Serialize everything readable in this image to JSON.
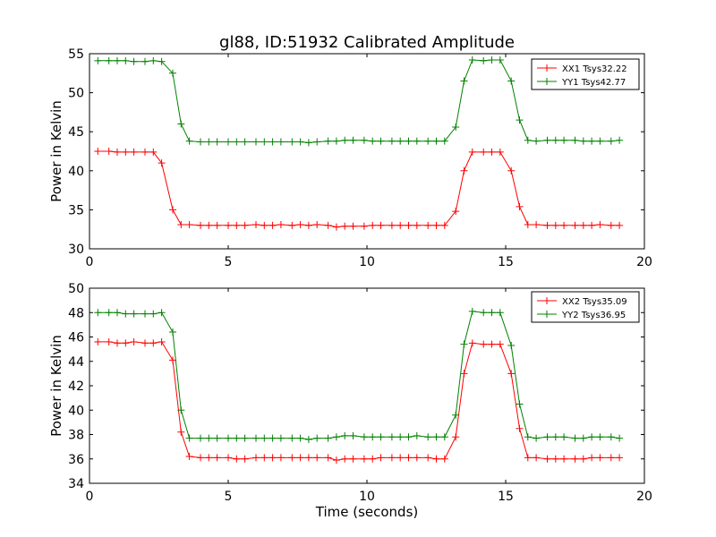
{
  "chart_data": [
    {
      "type": "line",
      "title": "gl88, ID:51932 Calibrated Amplitude",
      "xlabel": "",
      "ylabel": "Power in Kelvin",
      "xlim": [
        0,
        20
      ],
      "ylim": [
        30,
        55
      ],
      "xticks": [
        0,
        5,
        10,
        15,
        20
      ],
      "yticks": [
        30,
        35,
        40,
        45,
        50,
        55
      ],
      "grid": false,
      "legend_position": "top-right",
      "x": [
        0.3,
        0.7,
        1.0,
        1.3,
        1.6,
        2.0,
        2.3,
        2.6,
        3.0,
        3.3,
        3.6,
        4.0,
        4.3,
        4.6,
        5.0,
        5.3,
        5.6,
        6.0,
        6.3,
        6.6,
        6.9,
        7.3,
        7.6,
        7.9,
        8.2,
        8.6,
        8.9,
        9.2,
        9.5,
        9.9,
        10.2,
        10.5,
        10.9,
        11.2,
        11.5,
        11.8,
        12.2,
        12.5,
        12.8,
        13.2,
        13.5,
        13.8,
        14.2,
        14.5,
        14.8,
        15.2,
        15.5,
        15.8,
        16.1,
        16.5,
        16.8,
        17.1,
        17.5,
        17.8,
        18.1,
        18.4,
        18.8,
        19.1
      ],
      "series": [
        {
          "name": "XX1 Tsys32.22",
          "color": "#ff0000",
          "values": [
            42.5,
            42.5,
            42.4,
            42.4,
            42.4,
            42.4,
            42.4,
            41.0,
            35.0,
            33.1,
            33.1,
            33.0,
            33.0,
            33.0,
            33.0,
            33.0,
            33.0,
            33.1,
            33.0,
            33.0,
            33.1,
            33.0,
            33.1,
            33.0,
            33.1,
            33.0,
            32.8,
            32.9,
            32.9,
            32.9,
            33.0,
            33.0,
            33.0,
            33.0,
            33.0,
            33.0,
            33.0,
            33.0,
            33.0,
            34.8,
            40.0,
            42.4,
            42.4,
            42.4,
            42.4,
            40.0,
            35.4,
            33.1,
            33.1,
            33.0,
            33.0,
            33.0,
            33.0,
            33.0,
            33.0,
            33.1,
            33.0,
            33.0
          ]
        },
        {
          "name": "YY1 Tsys42.77",
          "color": "#008000",
          "values": [
            54.1,
            54.1,
            54.1,
            54.1,
            54.0,
            54.0,
            54.1,
            54.0,
            52.5,
            46.0,
            43.8,
            43.7,
            43.7,
            43.7,
            43.7,
            43.7,
            43.7,
            43.7,
            43.7,
            43.7,
            43.7,
            43.7,
            43.7,
            43.6,
            43.7,
            43.8,
            43.8,
            43.9,
            43.9,
            43.9,
            43.8,
            43.8,
            43.8,
            43.8,
            43.8,
            43.8,
            43.8,
            43.8,
            43.8,
            45.6,
            51.5,
            54.2,
            54.1,
            54.2,
            54.2,
            51.5,
            46.5,
            43.9,
            43.8,
            43.9,
            43.9,
            43.9,
            43.9,
            43.8,
            43.8,
            43.8,
            43.8,
            43.9
          ]
        }
      ]
    },
    {
      "type": "line",
      "title": "",
      "xlabel": "Time (seconds)",
      "ylabel": "Power in Kelvin",
      "xlim": [
        0,
        20
      ],
      "ylim": [
        34,
        50
      ],
      "xticks": [
        0,
        5,
        10,
        15,
        20
      ],
      "yticks": [
        34,
        36,
        38,
        40,
        42,
        44,
        46,
        48,
        50
      ],
      "grid": false,
      "legend_position": "top-right",
      "x": [
        0.3,
        0.7,
        1.0,
        1.3,
        1.6,
        2.0,
        2.3,
        2.6,
        3.0,
        3.3,
        3.6,
        4.0,
        4.3,
        4.6,
        5.0,
        5.3,
        5.6,
        6.0,
        6.3,
        6.6,
        6.9,
        7.3,
        7.6,
        7.9,
        8.2,
        8.6,
        8.9,
        9.2,
        9.5,
        9.9,
        10.2,
        10.5,
        10.9,
        11.2,
        11.5,
        11.8,
        12.2,
        12.5,
        12.8,
        13.2,
        13.5,
        13.8,
        14.2,
        14.5,
        14.8,
        15.2,
        15.5,
        15.8,
        16.1,
        16.5,
        16.8,
        17.1,
        17.5,
        17.8,
        18.1,
        18.4,
        18.8,
        19.1
      ],
      "series": [
        {
          "name": "XX2 Tsys35.09",
          "color": "#ff0000",
          "values": [
            45.6,
            45.6,
            45.5,
            45.5,
            45.6,
            45.5,
            45.5,
            45.6,
            44.1,
            38.2,
            36.2,
            36.1,
            36.1,
            36.1,
            36.1,
            36.0,
            36.0,
            36.1,
            36.1,
            36.1,
            36.1,
            36.1,
            36.1,
            36.1,
            36.1,
            36.1,
            35.9,
            36.0,
            36.0,
            36.0,
            36.0,
            36.1,
            36.1,
            36.1,
            36.1,
            36.1,
            36.1,
            36.0,
            36.0,
            37.8,
            43.0,
            45.5,
            45.4,
            45.4,
            45.4,
            43.0,
            38.5,
            36.1,
            36.1,
            36.0,
            36.0,
            36.0,
            36.0,
            36.0,
            36.1,
            36.1,
            36.1,
            36.1
          ]
        },
        {
          "name": "YY2 Tsys36.95",
          "color": "#008000",
          "values": [
            48.0,
            48.0,
            48.0,
            47.9,
            47.9,
            47.9,
            47.9,
            48.0,
            46.4,
            40.0,
            37.7,
            37.7,
            37.7,
            37.7,
            37.7,
            37.7,
            37.7,
            37.7,
            37.7,
            37.7,
            37.7,
            37.7,
            37.7,
            37.6,
            37.7,
            37.7,
            37.8,
            37.9,
            37.9,
            37.8,
            37.8,
            37.8,
            37.8,
            37.8,
            37.8,
            37.9,
            37.8,
            37.8,
            37.8,
            39.6,
            45.4,
            48.1,
            48.0,
            48.0,
            48.0,
            45.3,
            40.5,
            37.8,
            37.7,
            37.8,
            37.8,
            37.8,
            37.7,
            37.7,
            37.8,
            37.8,
            37.8,
            37.7
          ]
        }
      ]
    }
  ]
}
